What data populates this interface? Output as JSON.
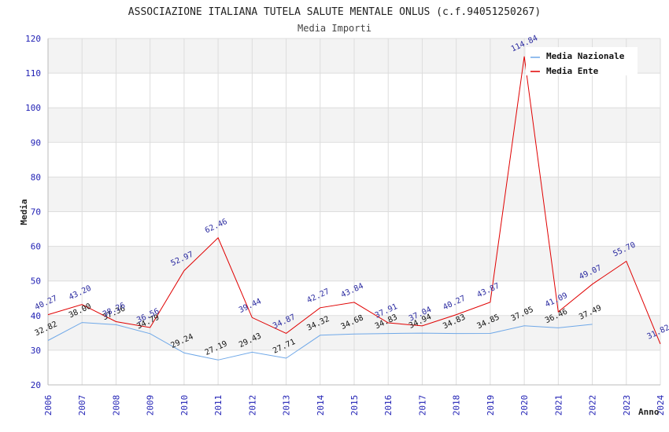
{
  "chart_data": {
    "type": "line",
    "title": "ASSOCIAZIONE ITALIANA TUTELA SALUTE MENTALE ONLUS (c.f.94051250267)",
    "subtitle": "Media Importi",
    "xlabel": "Anno",
    "ylabel": "Media",
    "ylim": [
      20,
      120
    ],
    "yticks": [
      20,
      30,
      40,
      50,
      60,
      70,
      80,
      90,
      100,
      110,
      120
    ],
    "x": [
      2006,
      2007,
      2008,
      2009,
      2010,
      2011,
      2012,
      2013,
      2014,
      2015,
      2016,
      2017,
      2018,
      2019,
      2020,
      2021,
      2022,
      2023,
      2024
    ],
    "legend_position": "top-right",
    "series": [
      {
        "name": "Media Nazionale",
        "color": "#6fa8e8",
        "values": [
          32.82,
          38.0,
          37.36,
          34.79,
          29.24,
          27.19,
          29.43,
          27.71,
          34.32,
          34.68,
          34.83,
          34.94,
          34.83,
          34.85,
          37.05,
          36.46,
          37.49,
          null,
          null
        ],
        "labels": [
          "32.82",
          "38.00",
          "37.36",
          "34.79",
          "29.24",
          "27.19",
          "29.43",
          "27.71",
          "34.32",
          "34.68",
          "34.83",
          "34.94",
          "34.83",
          "34.85",
          "37.05",
          "36.46",
          "37.49",
          null,
          null
        ]
      },
      {
        "name": "Media Ente",
        "color": "#e00000",
        "values": [
          40.27,
          43.2,
          38.26,
          36.56,
          52.97,
          62.46,
          39.44,
          34.87,
          42.27,
          43.84,
          37.91,
          37.04,
          40.27,
          43.87,
          114.84,
          41.09,
          49.07,
          55.7,
          31.82
        ],
        "labels": [
          "40.27",
          "43.20",
          "38.26",
          "36.56",
          "52.97",
          "62.46",
          "39.44",
          "34.87",
          "42.27",
          "43.84",
          "37.91",
          "37.04",
          "40.27",
          "43.87",
          "114.84",
          "41.09",
          "49.07",
          "55.70",
          "31.82"
        ]
      }
    ]
  }
}
